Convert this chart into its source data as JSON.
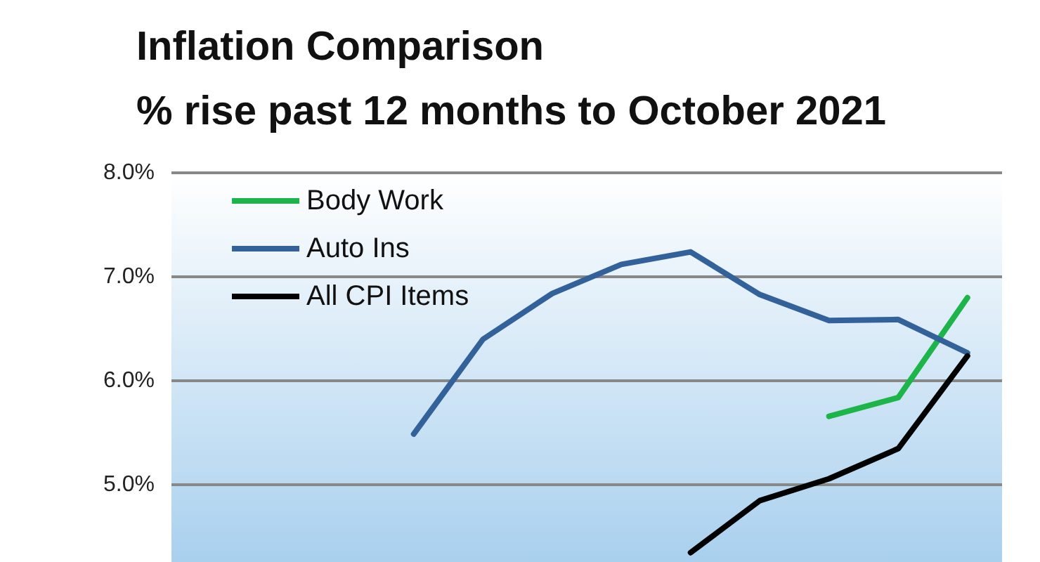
{
  "chart_data": {
    "type": "line",
    "title": "Inflation Comparison",
    "subtitle": "% rise past 12 months to October 2021",
    "categories": [
      null,
      null,
      null,
      null,
      null,
      null,
      null,
      null,
      null,
      null,
      null,
      null
    ],
    "series": [
      {
        "name": "Body Work",
        "color": "#1db44a",
        "values": [
          null,
          null,
          null,
          null,
          null,
          null,
          null,
          null,
          null,
          5.66,
          5.84,
          6.8
        ]
      },
      {
        "name": "Auto Ins",
        "color": "#336199",
        "values": [
          null,
          null,
          null,
          5.49,
          6.4,
          6.84,
          7.12,
          7.24,
          6.83,
          6.58,
          6.59,
          6.27
        ]
      },
      {
        "name": "All CPI Items",
        "color": "#000000",
        "values": [
          null,
          null,
          null,
          null,
          null,
          null,
          null,
          4.35,
          4.85,
          5.06,
          5.35,
          6.24
        ]
      }
    ],
    "ylim": [
      4.26,
      8.0
    ],
    "yticks": [
      {
        "value": 5,
        "label": "5.0%"
      },
      {
        "value": 6,
        "label": "6.0%"
      },
      {
        "value": 7,
        "label": "7.0%"
      },
      {
        "value": 8,
        "label": "8.0%"
      }
    ],
    "grid": "y",
    "legend": "top left",
    "marker": "none",
    "line_style": "solid",
    "tick_labels": "y"
  }
}
